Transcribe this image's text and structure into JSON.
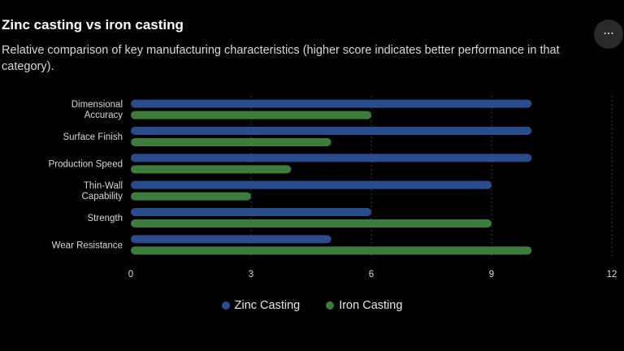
{
  "chart_data": {
    "type": "bar",
    "orientation": "horizontal",
    "title": "Zinc casting vs iron casting",
    "subtitle": "Relative comparison of key manufacturing characteristics (higher score indicates better performance in that category).",
    "categories": [
      "Dimensional Accuracy",
      "Surface Finish",
      "Production Speed",
      "Thin-Wall Capability",
      "Strength",
      "Wear Resistance"
    ],
    "category_lines": [
      [
        "Dimensional",
        "Accuracy"
      ],
      [
        "Surface Finish"
      ],
      [
        "Production Speed"
      ],
      [
        "Thin-Wall",
        "Capability"
      ],
      [
        "Strength"
      ],
      [
        "Wear Resistance"
      ]
    ],
    "series": [
      {
        "name": "Zinc Casting",
        "color": "#2b4c8c",
        "values": [
          10,
          10,
          10,
          9,
          6,
          5
        ]
      },
      {
        "name": "Iron Casting",
        "color": "#3c7d3e",
        "values": [
          6,
          5,
          4,
          3,
          9,
          10
        ]
      }
    ],
    "xlim": [
      0,
      12
    ],
    "xticks": [
      "0",
      "3",
      "6",
      "9",
      "12"
    ],
    "grid": true,
    "legend_position": "bottom"
  },
  "menu": {
    "label": "···"
  }
}
